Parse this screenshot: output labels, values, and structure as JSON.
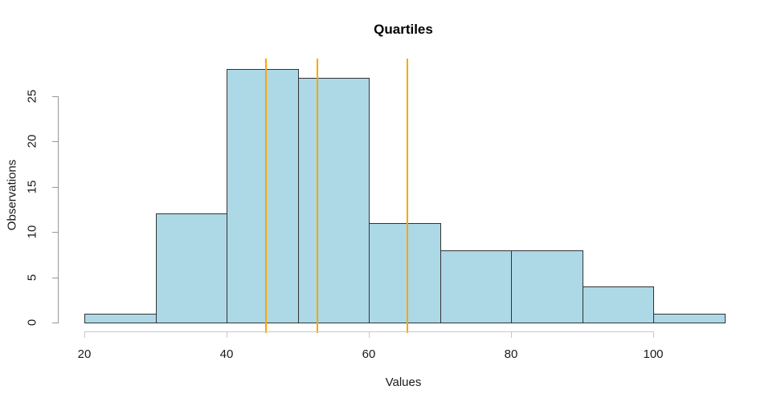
{
  "chart_data": {
    "type": "bar",
    "subtype": "histogram",
    "title": "Quartiles",
    "xlabel": "Values",
    "ylabel": "Observations",
    "bin_breaks": [
      20,
      30,
      40,
      50,
      60,
      70,
      80,
      90,
      100,
      110
    ],
    "counts": [
      1,
      12,
      28,
      27,
      11,
      8,
      8,
      4,
      1
    ],
    "x_ticks": [
      "20",
      "40",
      "60",
      "80",
      "100"
    ],
    "x_tick_values": [
      20,
      40,
      60,
      80,
      100
    ],
    "y_ticks": [
      "0",
      "5",
      "10",
      "15",
      "20",
      "25"
    ],
    "y_tick_values": [
      0,
      5,
      10,
      15,
      20,
      25
    ],
    "xlim": [
      16.4,
      113.6
    ],
    "ylim": [
      -1.1,
      29.1
    ],
    "grid": false,
    "legend": "none",
    "vlines": {
      "name": "quartile-lines",
      "values": [
        45.5,
        52.8,
        65.4
      ],
      "color": "#FFA500"
    },
    "colors": {
      "bar_fill": "#ADD8E6",
      "bar_border": "#333333",
      "x_axis": "#c8c8c8",
      "y_axis": "#989898",
      "text": "#1a1a1a",
      "background": "#ffffff"
    }
  }
}
